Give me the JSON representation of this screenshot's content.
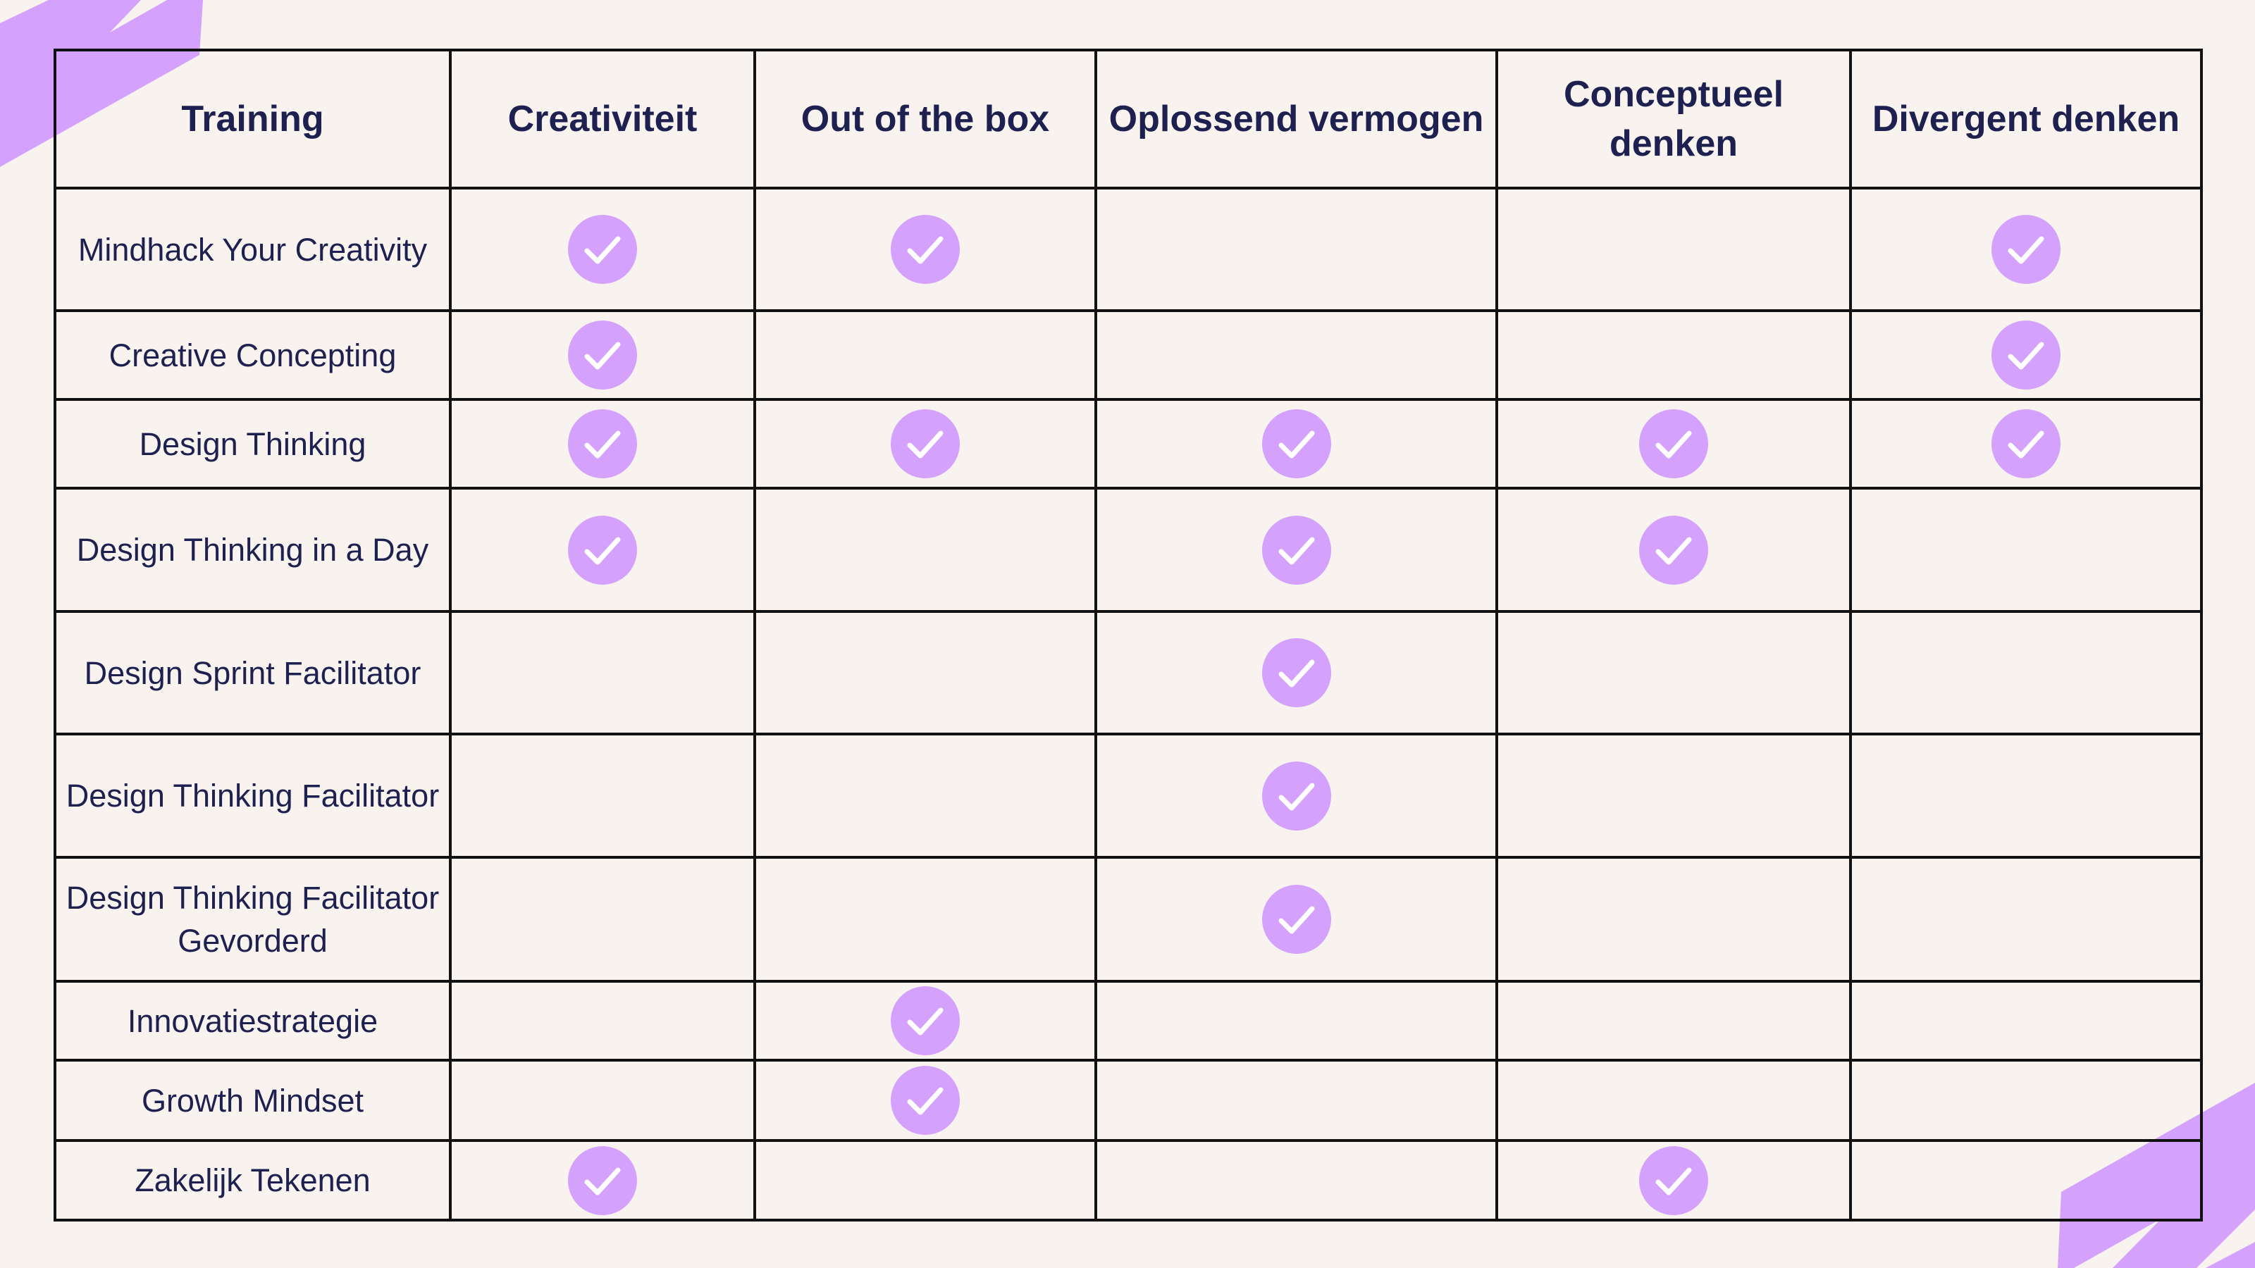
{
  "colors": {
    "accent": "#d4a2fc",
    "text": "#1e2150",
    "background": "#f8f3ef",
    "border": "#111111"
  },
  "headers": [
    "Training",
    "Creativiteit",
    "Out of the box",
    "Oplossend vermogen",
    "Conceptueel denken",
    "Divergent denken"
  ],
  "check_icon": "check-circle-icon",
  "rows": [
    {
      "name": "Mindhack Your Creativity",
      "checks": [
        true,
        true,
        false,
        false,
        true
      ]
    },
    {
      "name": "Creative Concepting",
      "checks": [
        true,
        false,
        false,
        false,
        true
      ]
    },
    {
      "name": "Design Thinking",
      "checks": [
        true,
        true,
        true,
        true,
        true
      ]
    },
    {
      "name": "Design Thinking in a Day",
      "checks": [
        true,
        false,
        true,
        true,
        false
      ]
    },
    {
      "name": "Design Sprint Facilitator",
      "checks": [
        false,
        false,
        true,
        false,
        false
      ]
    },
    {
      "name": "Design Thinking Facilitator",
      "checks": [
        false,
        false,
        true,
        false,
        false
      ]
    },
    {
      "name": "Design Thinking Facilitator Gevorderd",
      "checks": [
        false,
        false,
        true,
        false,
        false
      ]
    },
    {
      "name": "Innovatiestrategie",
      "checks": [
        false,
        true,
        false,
        false,
        false
      ]
    },
    {
      "name": "Growth Mindset",
      "checks": [
        false,
        true,
        false,
        false,
        false
      ]
    },
    {
      "name": "Zakelijk Tekenen",
      "checks": [
        true,
        false,
        false,
        true,
        false
      ]
    }
  ]
}
